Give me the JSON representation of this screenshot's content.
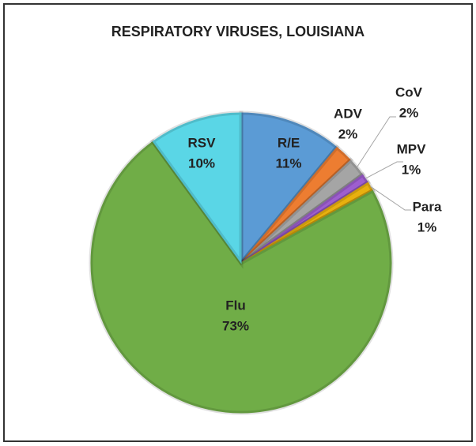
{
  "chart_data": {
    "type": "pie",
    "title": "RESPIRATORY VIRUSES, LOUISIANA",
    "categories": [
      "R/E",
      "ADV",
      "CoV",
      "MPV",
      "Para",
      "Flu",
      "RSV"
    ],
    "values": [
      11,
      2,
      2,
      1,
      1,
      73,
      10
    ],
    "value_labels": [
      "11%",
      "2%",
      "2%",
      "1%",
      "1%",
      "73%",
      "10%"
    ],
    "colors": [
      "#5b9bd5",
      "#ed7d31",
      "#a5a5a5",
      "#9e5ecf",
      "#e8b00f",
      "#70ad47",
      "#5ad6e6"
    ]
  }
}
